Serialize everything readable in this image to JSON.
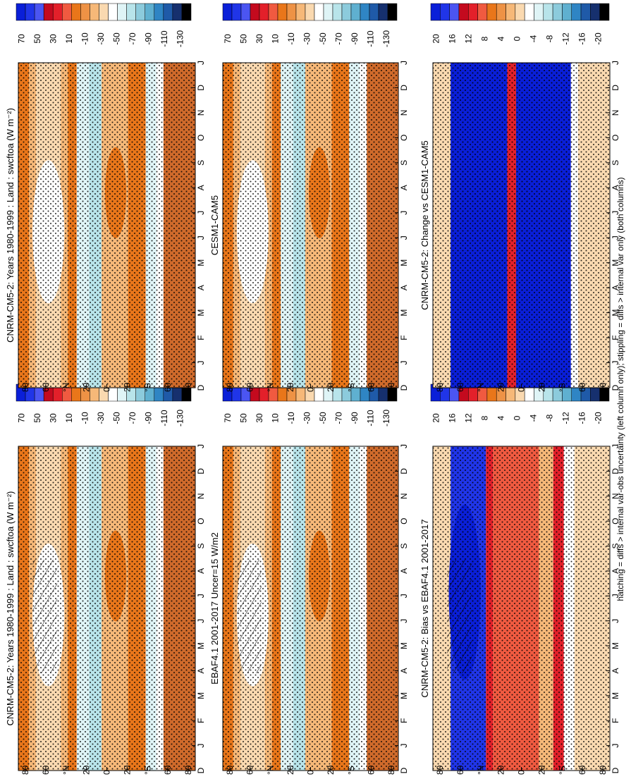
{
  "figure": {
    "footnote": "hatching = diffs > internal var-obs uncertainty (left column only); stippling = diffs > internal var only (both columns)"
  },
  "colors": {
    "abs_scale": [
      "#0a1fd8",
      "#2035e8",
      "#4b55f2",
      "#c40a1e",
      "#e3202a",
      "#f05a40",
      "#e9761a",
      "#ee9245",
      "#f6b878",
      "#fad9b0",
      "#ffffff",
      "#dff4f6",
      "#b8e4ea",
      "#8ccbdc",
      "#5fb0d0",
      "#2f85c4",
      "#1f5aa8",
      "#16306e",
      "#000000"
    ],
    "diff_scale": [
      "#0a1fd8",
      "#2035e8",
      "#4b55f2",
      "#c40a1e",
      "#e3202a",
      "#f05a40",
      "#e9761a",
      "#ee9245",
      "#f6b878",
      "#fad9b0",
      "#ffffff",
      "#dff4f6",
      "#b8e4ea",
      "#8ccbdc",
      "#5fb0d0",
      "#2f85c4",
      "#1f5aa8",
      "#16306e",
      "#000000"
    ]
  },
  "chart_data": [
    {
      "type": "heatmap",
      "title": "CNRM-CM5-2: Years 1980-1999 : Land : swcftoa (W m⁻²)",
      "x_ticks": [
        "D",
        "J",
        "F",
        "M",
        "A",
        "M",
        "J",
        "J",
        "A",
        "S",
        "O",
        "N",
        "D",
        "J"
      ],
      "y_ticks": [
        "80",
        "60",
        "°N",
        "20",
        "0",
        "20",
        "°S",
        "60",
        "80"
      ],
      "colorbar": [
        "70",
        "50",
        "30",
        "10",
        "-10",
        "-30",
        "-50",
        "-70",
        "-90",
        "-110",
        "-130"
      ],
      "hatching": true,
      "stippling": true
    },
    {
      "type": "heatmap",
      "title": "CNRM-CM5-2: Years 1980-1999 : Land : swcftoa (W m⁻²)",
      "x_ticks": [
        "D",
        "J",
        "F",
        "M",
        "A",
        "M",
        "J",
        "J",
        "A",
        "S",
        "O",
        "N",
        "D",
        "J"
      ],
      "y_ticks": [
        "80",
        "60",
        "°N",
        "20",
        "0",
        "20",
        "°S",
        "60",
        "80"
      ],
      "colorbar": [
        "70",
        "50",
        "30",
        "10",
        "-10",
        "-30",
        "-50",
        "-70",
        "-90",
        "-110",
        "-130"
      ],
      "hatching": false,
      "stippling": true
    },
    {
      "type": "heatmap",
      "title": "EBAF4.1 2001-2017 Uncer=15 W/m2",
      "x_ticks": [
        "D",
        "J",
        "F",
        "M",
        "A",
        "M",
        "J",
        "J",
        "A",
        "S",
        "O",
        "N",
        "D",
        "J"
      ],
      "y_ticks": [
        "80",
        "60",
        "°N",
        "20",
        "0",
        "20",
        "°S",
        "60",
        "80"
      ],
      "colorbar": [
        "70",
        "50",
        "30",
        "10",
        "-10",
        "-30",
        "-50",
        "-70",
        "-90",
        "-110",
        "-130"
      ],
      "hatching": true,
      "stippling": true
    },
    {
      "type": "heatmap",
      "title": "CESM1-CAM5",
      "x_ticks": [
        "D",
        "J",
        "F",
        "M",
        "A",
        "M",
        "J",
        "J",
        "A",
        "S",
        "O",
        "N",
        "D",
        "J"
      ],
      "y_ticks": [
        "80",
        "60",
        "°N",
        "20",
        "0",
        "20",
        "°S",
        "60",
        "80"
      ],
      "colorbar": [
        "70",
        "50",
        "30",
        "10",
        "-10",
        "-30",
        "-50",
        "-70",
        "-90",
        "-110",
        "-130"
      ],
      "hatching": false,
      "stippling": true
    },
    {
      "type": "heatmap",
      "title": "CNRM-CM5-2: Bias vs EBAF4.1 2001-2017",
      "x_ticks": [
        "D",
        "J",
        "F",
        "M",
        "A",
        "M",
        "J",
        "J",
        "A",
        "S",
        "O",
        "N",
        "D",
        "J"
      ],
      "y_ticks": [
        "80",
        "60",
        "°N",
        "20",
        "0",
        "20",
        "°S",
        "60",
        "80"
      ],
      "colorbar": [
        "20",
        "16",
        "12",
        "8",
        "4",
        "0",
        "-4",
        "-8",
        "-12",
        "-16",
        "-20"
      ],
      "hatching": true,
      "stippling": true
    },
    {
      "type": "heatmap",
      "title": "CNRM-CM5-2: Change vs CESM1-CAM5",
      "x_ticks": [
        "D",
        "J",
        "F",
        "M",
        "A",
        "M",
        "J",
        "J",
        "A",
        "S",
        "O",
        "N",
        "D",
        "J"
      ],
      "y_ticks": [
        "80",
        "60",
        "°N",
        "20",
        "0",
        "20",
        "°S",
        "60",
        "80"
      ],
      "colorbar": [
        "20",
        "16",
        "12",
        "8",
        "4",
        "0",
        "-4",
        "-8",
        "-12",
        "-16",
        "-20"
      ],
      "hatching": false,
      "stippling": true
    }
  ]
}
